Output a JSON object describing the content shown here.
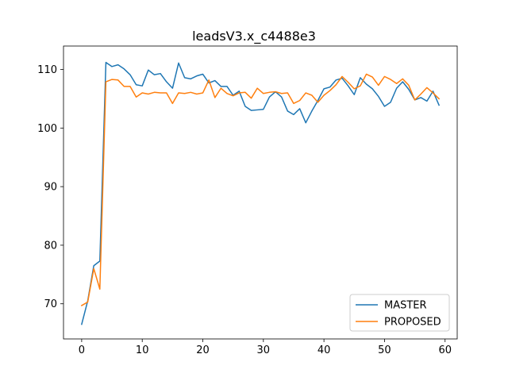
{
  "chart_data": {
    "type": "line",
    "title": "leadsV3.x_c4488e3",
    "xlabel": "",
    "ylabel": "",
    "xlim": [
      -3,
      62
    ],
    "ylim": [
      64,
      114
    ],
    "xticks": [
      0,
      10,
      20,
      30,
      40,
      50,
      60
    ],
    "yticks": [
      70,
      80,
      90,
      100,
      110
    ],
    "grid": false,
    "legend_position": "lower-right",
    "x": [
      0,
      1,
      2,
      3,
      4,
      5,
      6,
      7,
      8,
      9,
      10,
      11,
      12,
      13,
      14,
      15,
      16,
      17,
      18,
      19,
      20,
      21,
      22,
      23,
      24,
      25,
      26,
      27,
      28,
      29,
      30,
      31,
      32,
      33,
      34,
      35,
      36,
      37,
      38,
      39,
      40,
      41,
      42,
      43,
      44,
      45,
      46,
      47,
      48,
      49,
      50,
      51,
      52,
      53,
      54,
      55,
      56,
      57,
      58,
      59
    ],
    "series": [
      {
        "name": "MASTER",
        "color": "#1f77b4",
        "values": [
          66.5,
          70.5,
          76.5,
          77.3,
          111.2,
          110.5,
          110.8,
          110.1,
          109.1,
          107.4,
          107.2,
          109.9,
          109.1,
          109.3,
          107.9,
          106.8,
          111.1,
          108.6,
          108.4,
          108.9,
          109.2,
          107.7,
          108.1,
          107.1,
          107.1,
          105.6,
          106.3,
          103.7,
          103.0,
          103.1,
          103.2,
          105.3,
          106.2,
          105.3,
          102.9,
          102.3,
          103.3,
          100.9,
          102.9,
          104.7,
          106.7,
          107.0,
          108.2,
          108.5,
          107.2,
          105.7,
          108.6,
          107.5,
          106.7,
          105.4,
          103.7,
          104.4,
          106.8,
          107.9,
          106.6,
          104.8,
          105.2,
          104.6,
          106.3,
          103.9
        ]
      },
      {
        "name": "PROPOSED",
        "color": "#ff7f0e",
        "values": [
          69.7,
          70.3,
          76.0,
          72.5,
          107.9,
          108.3,
          108.2,
          107.1,
          107.1,
          105.3,
          106.0,
          105.8,
          106.1,
          106.0,
          106.0,
          104.2,
          106.0,
          105.9,
          106.1,
          105.8,
          106.0,
          108.2,
          105.2,
          106.8,
          105.9,
          105.5,
          106.0,
          106.1,
          105.1,
          106.8,
          105.9,
          106.1,
          106.2,
          105.9,
          106.0,
          104.2,
          104.7,
          106.0,
          105.6,
          104.4,
          105.6,
          106.4,
          107.4,
          108.8,
          107.8,
          106.7,
          107.2,
          109.2,
          108.7,
          107.3,
          108.8,
          108.3,
          107.6,
          108.4,
          107.3,
          104.8,
          105.8,
          106.9,
          106.0,
          105.0
        ]
      }
    ]
  }
}
